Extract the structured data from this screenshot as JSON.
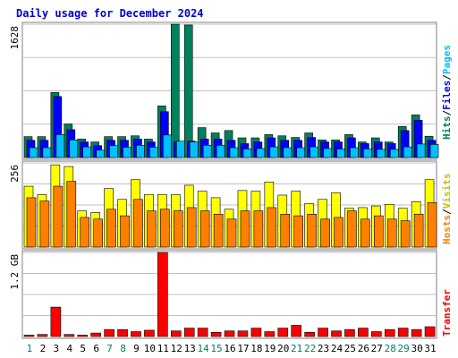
{
  "chart_data": {
    "type": "bar",
    "title": "Daily usage for December 2024",
    "categories": [
      "1",
      "2",
      "3",
      "4",
      "5",
      "6",
      "7",
      "8",
      "9",
      "10",
      "11",
      "12",
      "13",
      "14",
      "15",
      "16",
      "17",
      "18",
      "19",
      "20",
      "21",
      "22",
      "23",
      "24",
      "25",
      "26",
      "27",
      "28",
      "29",
      "30",
      "31"
    ],
    "weekend_days": [
      "1",
      "7",
      "8",
      "14",
      "15",
      "21",
      "22",
      "28",
      "29"
    ],
    "colors": {
      "hits": "#00805c",
      "files": "#0000ff",
      "pages": "#00c0ff",
      "visits": "#ffff00",
      "sites": "#ff8000",
      "kbytes": "#ff0000",
      "weekday_label": "#000000",
      "weekend_label": "#00805c",
      "title": "#0000cc",
      "grid": "#c0c0c0",
      "frame_dark": "#808080"
    },
    "panels": [
      {
        "id": "hits",
        "ytick_label": "1628",
        "ymax": 1628,
        "side_label": [
          {
            "text": "Hits",
            "color": "#00805c"
          },
          {
            "text": "/",
            "color": "#000000"
          },
          {
            "text": "Files",
            "color": "#0000ff"
          },
          {
            "text": "/",
            "color": "#000000"
          },
          {
            "text": "Pages",
            "color": "#00c0ff"
          }
        ],
        "series": [
          {
            "key": "hits",
            "values": [
              255,
              255,
              795,
              410,
              225,
              190,
              255,
              255,
              265,
              225,
              630,
              1628,
              1618,
              365,
              300,
              330,
              240,
              240,
              280,
              265,
              245,
              300,
              215,
              215,
              280,
              190,
              240,
              190,
              380,
              520,
              260
            ]
          },
          {
            "key": "files",
            "values": [
              210,
              210,
              745,
              340,
              190,
              145,
              210,
              210,
              225,
              190,
              560,
              190,
              200,
              225,
              225,
              210,
              170,
              190,
              240,
              210,
              210,
              245,
              190,
              190,
              240,
              170,
              190,
              170,
              330,
              455,
              210
            ]
          },
          {
            "key": "pages",
            "values": [
              120,
              120,
              280,
              215,
              130,
              90,
              145,
              125,
              150,
              125,
              275,
              200,
              190,
              150,
              150,
              120,
              105,
              110,
              130,
              120,
              120,
              130,
              110,
              105,
              120,
              105,
              100,
              100,
              130,
              165,
              160
            ]
          }
        ]
      },
      {
        "id": "visits",
        "ytick_label": "256",
        "ymax": 256,
        "side_label": [
          {
            "text": "Hosts",
            "color": "#ff8000"
          },
          {
            "text": "/",
            "color": "#000000"
          },
          {
            "text": "Visits",
            "color": "#c0c000"
          }
        ],
        "series": [
          {
            "key": "visits",
            "values": [
              185,
              160,
              250,
              245,
              110,
              105,
              178,
              145,
              205,
              160,
              160,
              160,
              188,
              170,
              150,
              115,
              172,
              170,
              198,
              158,
              170,
              132,
              145,
              165,
              118,
              120,
              125,
              130,
              118,
              138,
              205
            ]
          },
          {
            "key": "sites",
            "values": [
              150,
              140,
              185,
              200,
              90,
              85,
              115,
              95,
              145,
              110,
              115,
              110,
              120,
              110,
              100,
              85,
              110,
              110,
              120,
              100,
              95,
              100,
              85,
              90,
              110,
              85,
              95,
              85,
              80,
              100,
              135
            ]
          }
        ]
      },
      {
        "id": "kbytes",
        "ytick_label": "1.2 GB",
        "ymax": 1.2,
        "side_label": [
          {
            "text": "Transfer",
            "color": "#ff0000"
          }
        ],
        "series": [
          {
            "key": "kbytes",
            "values": [
              0.02,
              0.03,
              0.42,
              0.03,
              0.02,
              0.05,
              0.1,
              0.1,
              0.07,
              0.09,
              1.2,
              0.08,
              0.12,
              0.12,
              0.06,
              0.08,
              0.08,
              0.12,
              0.07,
              0.12,
              0.16,
              0.06,
              0.12,
              0.08,
              0.1,
              0.12,
              0.07,
              0.1,
              0.12,
              0.1,
              0.14
            ]
          }
        ]
      }
    ],
    "grid": true,
    "legend": "right-vertical"
  }
}
